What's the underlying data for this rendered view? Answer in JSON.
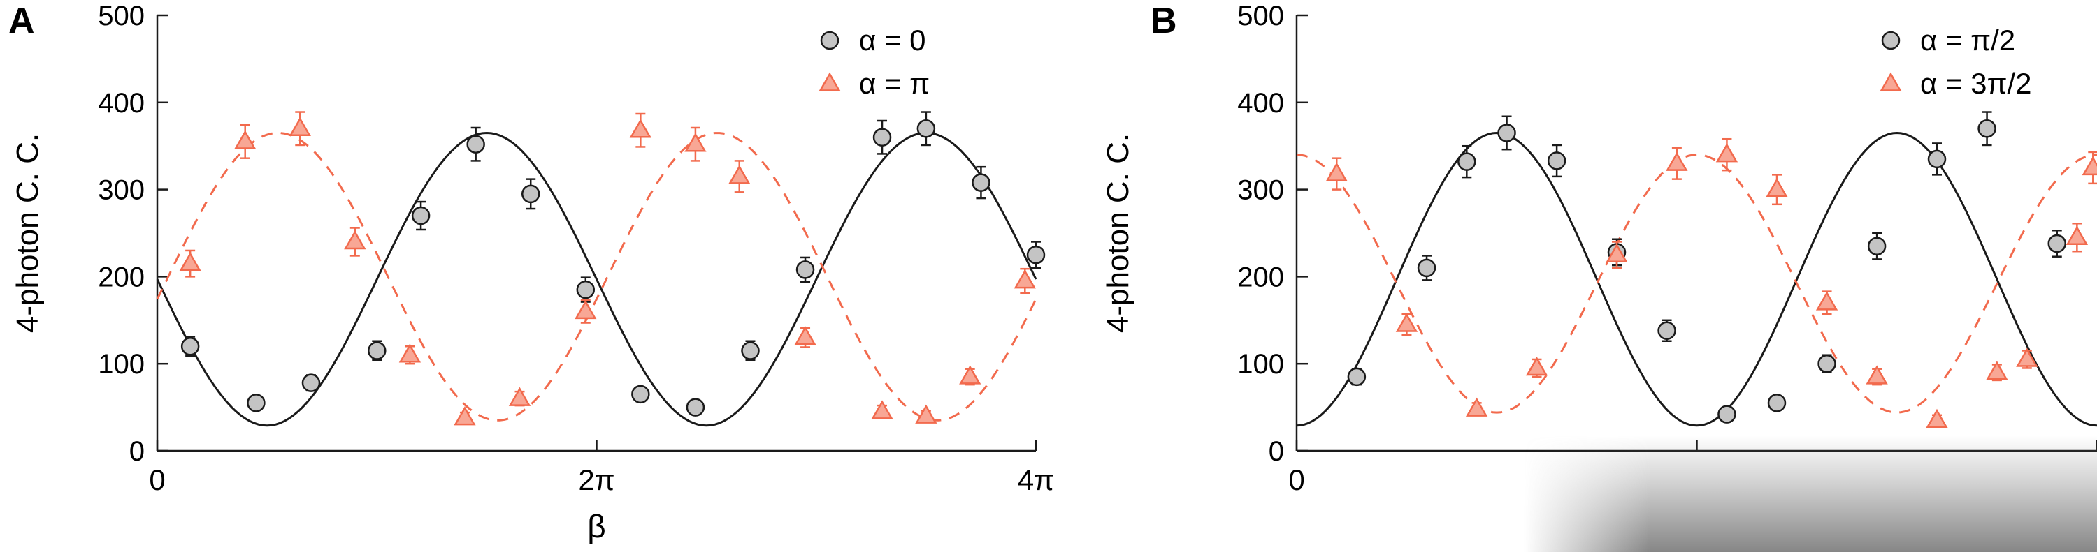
{
  "colors": {
    "black": "#1a1a1a",
    "gray_fill": "#c4c4c4",
    "orange": "#f26a4d",
    "orange_fill": "#f8a795",
    "background": "#ffffff"
  },
  "chart_data": [
    {
      "type": "scatter",
      "panel_label": "A",
      "title": "",
      "xlabel": "β",
      "ylabel": "4-photon C. C.",
      "xlim_pi": [
        0,
        4
      ],
      "ylim": [
        0,
        500
      ],
      "grid": false,
      "legend_position": "top-right-inside",
      "yticks": [
        0,
        100,
        200,
        300,
        400,
        500
      ],
      "xticks": [
        {
          "value_pi": 0,
          "label": "0"
        },
        {
          "value_pi": 2,
          "label": "2π"
        },
        {
          "value_pi": 4,
          "label": "4π"
        }
      ],
      "legend": [
        {
          "marker": "circle",
          "label": "α = 0"
        },
        {
          "marker": "triangle",
          "label": "α = π"
        }
      ],
      "series": [
        {
          "name": "α = 0",
          "marker": "circle",
          "color": "gray",
          "x_pi": [
            0.15,
            0.45,
            0.7,
            1.0,
            1.2,
            1.45,
            1.7,
            1.95,
            2.2,
            2.45,
            2.7,
            2.95,
            3.3,
            3.5,
            3.75,
            4.0
          ],
          "y": [
            120,
            55,
            78,
            115,
            270,
            352,
            295,
            185,
            65,
            50,
            115,
            208,
            360,
            370,
            308,
            225
          ],
          "yerr": [
            11,
            8,
            9,
            11,
            16,
            19,
            17,
            14,
            8,
            7,
            11,
            14,
            19,
            19,
            18,
            15
          ]
        },
        {
          "name": "α = π",
          "marker": "triangle",
          "color": "orange",
          "x_pi": [
            0.15,
            0.4,
            0.65,
            0.9,
            1.15,
            1.4,
            1.65,
            1.95,
            2.2,
            2.45,
            2.65,
            2.95,
            3.3,
            3.5,
            3.7,
            3.95
          ],
          "y": [
            215,
            355,
            370,
            240,
            110,
            38,
            60,
            160,
            368,
            352,
            315,
            130,
            45,
            40,
            85,
            195
          ],
          "yerr": [
            15,
            19,
            19,
            16,
            10,
            6,
            8,
            13,
            19,
            19,
            18,
            11,
            7,
            6,
            9,
            14
          ]
        }
      ],
      "fit_curves": [
        {
          "series": "α = 0",
          "style": "solid",
          "color": "black",
          "mean": 197,
          "amplitude": 168,
          "peak_pi": 1.5
        },
        {
          "series": "α = π",
          "style": "dashed",
          "color": "orange",
          "mean": 200,
          "amplitude": 165,
          "peak_pi": 0.55
        }
      ]
    },
    {
      "type": "scatter",
      "panel_label": "B",
      "title": "",
      "xlabel": "",
      "ylabel": "4-photon C. C.",
      "xlim_pi": [
        0,
        4
      ],
      "ylim": [
        0,
        500
      ],
      "grid": false,
      "legend_position": "top-right-inside",
      "yticks": [
        0,
        100,
        200,
        300,
        400,
        500
      ],
      "xticks": [
        {
          "value_pi": 0,
          "label": "0"
        },
        {
          "value_pi": 2,
          "label": ""
        },
        {
          "value_pi": 4,
          "label": ""
        }
      ],
      "legend": [
        {
          "marker": "circle",
          "label": "α = π/2"
        },
        {
          "marker": "triangle",
          "label": "α = 3π/2"
        }
      ],
      "series": [
        {
          "name": "α = π/2",
          "marker": "circle",
          "color": "gray",
          "x_pi": [
            0.3,
            0.65,
            0.85,
            1.05,
            1.3,
            1.6,
            1.85,
            2.15,
            2.4,
            2.65,
            2.9,
            3.2,
            3.45,
            3.8
          ],
          "y": [
            85,
            210,
            332,
            365,
            333,
            228,
            138,
            42,
            55,
            100,
            235,
            335,
            370,
            238
          ],
          "yerr": [
            9,
            14,
            18,
            19,
            18,
            15,
            12,
            6,
            7,
            10,
            15,
            18,
            19,
            15
          ]
        },
        {
          "name": "α = 3π/2",
          "marker": "triangle",
          "color": "orange",
          "x_pi": [
            0.2,
            0.55,
            0.9,
            1.2,
            1.6,
            1.9,
            2.15,
            2.4,
            2.65,
            2.9,
            3.2,
            3.5,
            3.65,
            3.9,
            3.98
          ],
          "y": [
            318,
            145,
            48,
            95,
            225,
            330,
            340,
            300,
            170,
            85,
            35,
            90,
            105,
            245,
            325
          ],
          "yerr": [
            18,
            12,
            7,
            10,
            15,
            18,
            18,
            17,
            13,
            9,
            6,
            9,
            10,
            16,
            18
          ]
        }
      ],
      "fit_curves": [
        {
          "series": "α = π/2",
          "style": "solid",
          "color": "black",
          "mean": 197,
          "amplitude": 168,
          "peak_pi": 1.0
        },
        {
          "series": "α = 3π/2",
          "style": "dashed",
          "color": "orange",
          "mean": 192,
          "amplitude": 148,
          "peak_pi": 0.0
        }
      ]
    }
  ]
}
